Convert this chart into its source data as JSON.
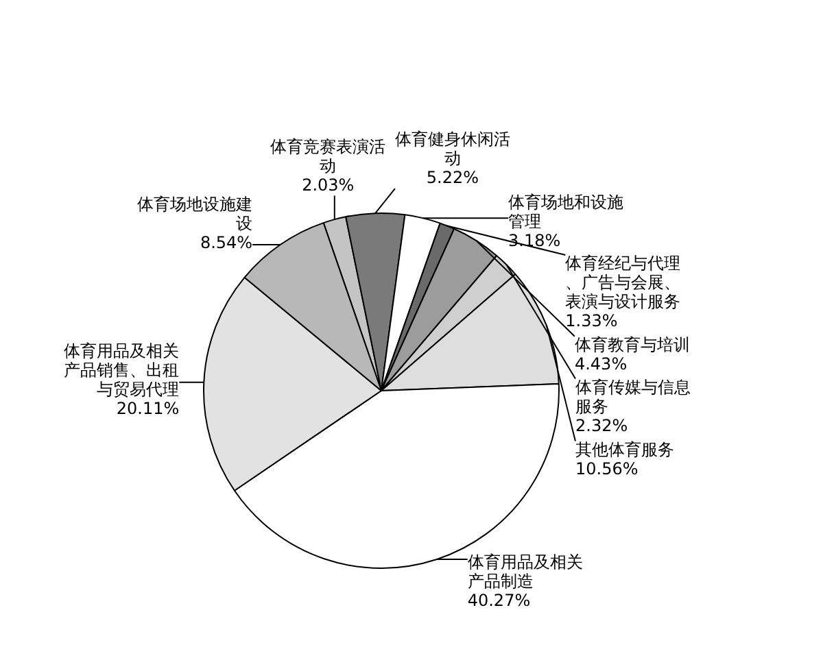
{
  "chart_data": {
    "type": "pie",
    "categories": [
      "体育竞赛表演活动",
      "体育健身休闲活动",
      "体育场地和设施管理",
      "体育经纪与代理、广告与会展、表演与设计服务",
      "体育教育与培训",
      "体育传媒与信息服务",
      "其他体育服务",
      "体育用品及相关产品制造",
      "体育用品及相关产品销售、出租与贸易代理",
      "体育场地设施建设"
    ],
    "values": [
      2.03,
      5.22,
      3.18,
      1.33,
      4.43,
      2.32,
      10.56,
      40.27,
      20.11,
      8.54
    ],
    "value_labels": [
      "2.03%",
      "5.22%",
      "3.18%",
      "1.33%",
      "4.43%",
      "2.32%",
      "10.56%",
      "40.27%",
      "20.11%",
      "8.54%"
    ],
    "colors": [
      "#c4c4c4",
      "#7a7a7a",
      "#ffffff",
      "#6a6a6a",
      "#9c9c9c",
      "#cfcfcf",
      "#dedede",
      "#ffffff",
      "#e2e2e2",
      "#b8b8b8"
    ],
    "legend": false
  }
}
